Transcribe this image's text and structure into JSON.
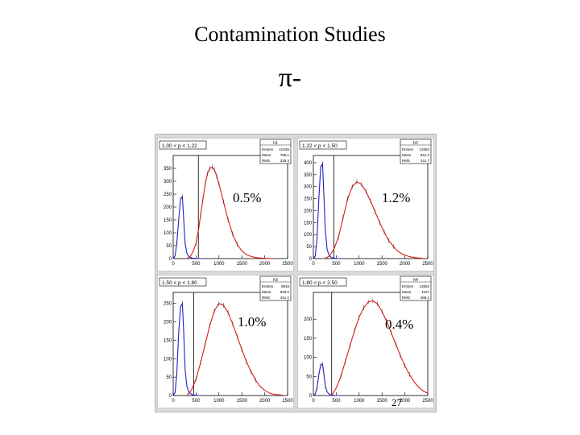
{
  "page": {
    "title": "Contamination Studies",
    "subtitle": "π-",
    "slide_number": "27"
  },
  "chart_data": [
    {
      "type": "line",
      "panel_label": "1.00 < p < 1.22",
      "histogram_name": "h1",
      "stats": [
        {
          "label": "Entries",
          "value": "10436"
        },
        {
          "label": "Mean",
          "value": "796.1"
        },
        {
          "label": "RMS",
          "value": "338.4"
        }
      ],
      "annotation": "0.5%",
      "x_ticks": [
        0,
        500,
        1000,
        1500,
        2000,
        2500
      ],
      "y_ticks": [
        0,
        50,
        100,
        150,
        200,
        250,
        300,
        350
      ],
      "xlim": [
        0,
        2500
      ],
      "ylim": [
        0,
        400
      ],
      "cut_x": 550,
      "series": [
        {
          "x": [
            0,
            40,
            80,
            120,
            160,
            200,
            230,
            260,
            300,
            340,
            380,
            420,
            480,
            540,
            600
          ],
          "y": [
            0,
            10,
            60,
            150,
            230,
            240,
            150,
            60,
            20,
            8,
            4,
            2,
            1,
            0,
            0
          ]
        },
        {
          "x": [
            300,
            380,
            440,
            500,
            560,
            600,
            650,
            700,
            750,
            800,
            850,
            900,
            950,
            1000,
            1100,
            1200,
            1300,
            1400,
            1500,
            1600,
            1700,
            1800,
            2000,
            2200
          ],
          "y": [
            0,
            10,
            30,
            60,
            120,
            170,
            230,
            290,
            330,
            350,
            355,
            345,
            320,
            290,
            220,
            150,
            95,
            55,
            30,
            15,
            8,
            4,
            1,
            0
          ]
        }
      ]
    },
    {
      "type": "line",
      "panel_label": "1.22 < p < 1.50",
      "histogram_name": "h2",
      "stats": [
        {
          "label": "Entries",
          "value": "13353"
        },
        {
          "label": "Mean",
          "value": "941.3"
        },
        {
          "label": "RMS",
          "value": "411.7"
        }
      ],
      "annotation": "1.2%",
      "x_ticks": [
        0,
        500,
        1000,
        1500,
        2000,
        2500
      ],
      "y_ticks": [
        0,
        50,
        100,
        150,
        200,
        250,
        300,
        350,
        400
      ],
      "xlim": [
        0,
        2500
      ],
      "ylim": [
        0,
        430
      ],
      "cut_x": 450,
      "series": [
        {
          "x": [
            0,
            40,
            80,
            120,
            160,
            200,
            230,
            260,
            300,
            340,
            380,
            420,
            480,
            540,
            600
          ],
          "y": [
            0,
            10,
            80,
            250,
            380,
            395,
            260,
            120,
            40,
            15,
            6,
            3,
            1,
            0,
            0
          ]
        },
        {
          "x": [
            250,
            350,
            450,
            550,
            650,
            750,
            850,
            950,
            1050,
            1150,
            1250,
            1350,
            1450,
            1550,
            1650,
            1750,
            1850,
            1950,
            2100,
            2250,
            2400
          ],
          "y": [
            0,
            10,
            40,
            90,
            170,
            250,
            300,
            320,
            310,
            280,
            240,
            195,
            150,
            110,
            75,
            50,
            30,
            18,
            8,
            3,
            1
          ]
        }
      ]
    },
    {
      "type": "line",
      "panel_label": "1.50 < p < 1.80",
      "histogram_name": "h3",
      "stats": [
        {
          "label": "Entries",
          "value": "9818"
        },
        {
          "label": "Mean",
          "value": "949.5"
        },
        {
          "label": "RMS",
          "value": "441.1"
        }
      ],
      "annotation": "1.0%",
      "x_ticks": [
        0,
        500,
        1000,
        1500,
        2000,
        2500
      ],
      "y_ticks": [
        0,
        50,
        100,
        150,
        200,
        250
      ],
      "xlim": [
        0,
        2500
      ],
      "ylim": [
        0,
        280
      ],
      "cut_x": 450,
      "series": [
        {
          "x": [
            0,
            40,
            80,
            120,
            160,
            200,
            230,
            260,
            300,
            340,
            380,
            420,
            480,
            540,
            600
          ],
          "y": [
            0,
            8,
            60,
            170,
            240,
            250,
            170,
            70,
            25,
            10,
            5,
            2,
            1,
            0,
            0
          ]
        },
        {
          "x": [
            300,
            400,
            500,
            600,
            700,
            800,
            900,
            1000,
            1100,
            1200,
            1300,
            1400,
            1500,
            1600,
            1700,
            1800,
            1900,
            2000,
            2100,
            2200,
            2400
          ],
          "y": [
            0,
            15,
            45,
            90,
            140,
            190,
            230,
            250,
            245,
            225,
            195,
            160,
            125,
            92,
            65,
            42,
            25,
            14,
            7,
            3,
            1
          ]
        }
      ]
    },
    {
      "type": "line",
      "panel_label": "1.80 < p < 2.50",
      "histogram_name": "h4",
      "stats": [
        {
          "label": "Entries",
          "value": "13653"
        },
        {
          "label": "Mean",
          "value": "1197"
        },
        {
          "label": "RMS",
          "value": "468.1"
        }
      ],
      "annotation": "0.4%",
      "x_ticks": [
        0,
        500,
        1000,
        1500,
        2000,
        2500
      ],
      "y_ticks": [
        0,
        50,
        100,
        150,
        200
      ],
      "xlim": [
        0,
        2500
      ],
      "ylim": [
        0,
        270
      ],
      "cut_x": 400,
      "series": [
        {
          "x": [
            0,
            40,
            80,
            120,
            160,
            200,
            230,
            260,
            300,
            340,
            380,
            420,
            480,
            540,
            600
          ],
          "y": [
            0,
            4,
            20,
            55,
            80,
            82,
            55,
            25,
            10,
            4,
            2,
            1,
            0,
            0,
            0
          ]
        },
        {
          "x": [
            400,
            500,
            600,
            700,
            800,
            900,
            1000,
            1100,
            1200,
            1300,
            1400,
            1500,
            1600,
            1700,
            1800,
            1900,
            2000,
            2100,
            2200,
            2300,
            2400,
            2500
          ],
          "y": [
            0,
            20,
            50,
            90,
            130,
            170,
            205,
            230,
            245,
            248,
            240,
            220,
            195,
            165,
            135,
            105,
            78,
            55,
            36,
            22,
            12,
            6
          ]
        }
      ]
    }
  ]
}
